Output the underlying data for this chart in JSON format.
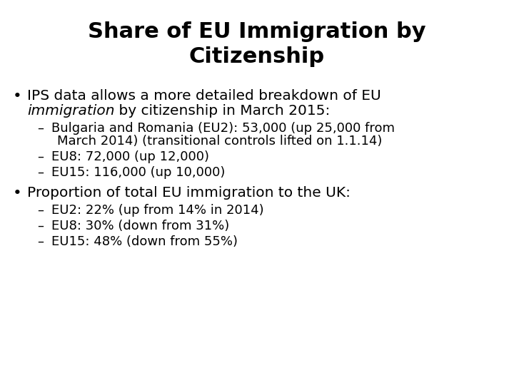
{
  "title_line1": "Share of EU Immigration by",
  "title_line2": "Citizenship",
  "background_color": "#ffffff",
  "text_color": "#000000",
  "title_fontsize": 22,
  "bullet_fontsize": 14.5,
  "sub_bullet_fontsize": 13,
  "content": [
    {
      "type": "bullet_mixed",
      "line1_normal": "IPS data allows a more detailed breakdown of EU",
      "line2_italic": "immigration",
      "line2_normal": " by citizenship in March 2015:"
    },
    {
      "type": "sub_bullet",
      "lines": [
        "Bulgaria and Romania (EU2): 53,000 (up 25,000 from",
        "March 2014) (transitional controls lifted on 1.1.14)"
      ]
    },
    {
      "type": "sub_bullet",
      "lines": [
        "EU8: 72,000 (up 12,000)"
      ]
    },
    {
      "type": "sub_bullet",
      "lines": [
        "EU15: 116,000 (up 10,000)"
      ]
    },
    {
      "type": "bullet_simple",
      "text": "Proportion of total EU immigration to the UK:"
    },
    {
      "type": "sub_bullet",
      "lines": [
        "EU2: 22% (up from 14% in 2014)"
      ]
    },
    {
      "type": "sub_bullet",
      "lines": [
        "EU8: 30% (down from 31%)"
      ]
    },
    {
      "type": "sub_bullet",
      "lines": [
        "EU15: 48% (down from 55%)"
      ]
    }
  ]
}
